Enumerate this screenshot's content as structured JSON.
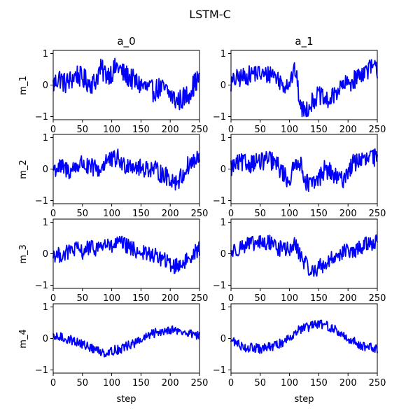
{
  "chart_data": {
    "type": "line",
    "title": "LSTM-C",
    "column_titles": [
      "a_0",
      "a_1"
    ],
    "row_labels": [
      "m_1",
      "m_2",
      "m_3",
      "m_4"
    ],
    "xlabel": "step",
    "xlim": [
      0,
      250
    ],
    "ylim": [
      -1.1,
      1.1
    ],
    "xticks": [
      0,
      50,
      100,
      150,
      200,
      250
    ],
    "yticks": [
      -1,
      0,
      1
    ],
    "line_color": "#0000ff",
    "points_per_series": 250,
    "panels": [
      {
        "row": "m_1",
        "col": "a_0",
        "anchors": [
          [
            0,
            0.0
          ],
          [
            10,
            0.25
          ],
          [
            20,
            0.05
          ],
          [
            30,
            0.15
          ],
          [
            40,
            0.35
          ],
          [
            50,
            0.2
          ],
          [
            60,
            0.1
          ],
          [
            70,
            0.05
          ],
          [
            80,
            0.5
          ],
          [
            90,
            0.35
          ],
          [
            100,
            0.4
          ],
          [
            110,
            0.6
          ],
          [
            120,
            0.35
          ],
          [
            130,
            0.25
          ],
          [
            140,
            0.1
          ],
          [
            150,
            0.0
          ],
          [
            160,
            -0.1
          ],
          [
            170,
            -0.2
          ],
          [
            180,
            -0.1
          ],
          [
            190,
            -0.15
          ],
          [
            200,
            -0.3
          ],
          [
            210,
            -0.5
          ],
          [
            220,
            -0.45
          ],
          [
            230,
            -0.3
          ],
          [
            240,
            0.0
          ],
          [
            250,
            0.25
          ]
        ],
        "noise": 0.35
      },
      {
        "row": "m_1",
        "col": "a_1",
        "anchors": [
          [
            0,
            0.05
          ],
          [
            10,
            0.2
          ],
          [
            20,
            0.25
          ],
          [
            30,
            0.3
          ],
          [
            40,
            0.4
          ],
          [
            50,
            0.35
          ],
          [
            60,
            0.3
          ],
          [
            70,
            0.4
          ],
          [
            80,
            0.2
          ],
          [
            90,
            0.0
          ],
          [
            100,
            0.1
          ],
          [
            110,
            0.5
          ],
          [
            115,
            -0.2
          ],
          [
            120,
            -0.8
          ],
          [
            130,
            -0.75
          ],
          [
            140,
            -0.5
          ],
          [
            150,
            -0.3
          ],
          [
            160,
            -0.5
          ],
          [
            170,
            -0.5
          ],
          [
            180,
            -0.2
          ],
          [
            190,
            -0.05
          ],
          [
            200,
            0.05
          ],
          [
            210,
            0.15
          ],
          [
            220,
            0.35
          ],
          [
            230,
            0.45
          ],
          [
            240,
            0.55
          ],
          [
            250,
            0.5
          ]
        ],
        "noise": 0.3
      },
      {
        "row": "m_2",
        "col": "a_0",
        "anchors": [
          [
            0,
            0.0
          ],
          [
            10,
            0.05
          ],
          [
            20,
            0.0
          ],
          [
            30,
            -0.05
          ],
          [
            40,
            0.1
          ],
          [
            50,
            0.2
          ],
          [
            60,
            0.0
          ],
          [
            70,
            0.05
          ],
          [
            80,
            -0.05
          ],
          [
            90,
            0.3
          ],
          [
            100,
            0.25
          ],
          [
            110,
            0.35
          ],
          [
            120,
            0.1
          ],
          [
            130,
            0.2
          ],
          [
            140,
            0.1
          ],
          [
            150,
            0.0
          ],
          [
            160,
            0.05
          ],
          [
            170,
            0.0
          ],
          [
            180,
            -0.1
          ],
          [
            190,
            -0.2
          ],
          [
            200,
            -0.3
          ],
          [
            210,
            -0.4
          ],
          [
            220,
            -0.25
          ],
          [
            230,
            0.1
          ],
          [
            240,
            0.25
          ],
          [
            250,
            0.3
          ]
        ],
        "noise": 0.3
      },
      {
        "row": "m_2",
        "col": "a_1",
        "anchors": [
          [
            0,
            0.05
          ],
          [
            10,
            0.15
          ],
          [
            20,
            0.2
          ],
          [
            30,
            0.15
          ],
          [
            40,
            0.25
          ],
          [
            50,
            0.2
          ],
          [
            60,
            0.3
          ],
          [
            70,
            0.25
          ],
          [
            80,
            0.1
          ],
          [
            90,
            -0.15
          ],
          [
            95,
            -0.3
          ],
          [
            100,
            -0.35
          ],
          [
            110,
            0.15
          ],
          [
            115,
            0.35
          ],
          [
            120,
            0.05
          ],
          [
            130,
            -0.45
          ],
          [
            140,
            -0.5
          ],
          [
            150,
            -0.3
          ],
          [
            160,
            0.0
          ],
          [
            170,
            -0.1
          ],
          [
            180,
            -0.3
          ],
          [
            190,
            -0.35
          ],
          [
            200,
            -0.05
          ],
          [
            210,
            0.2
          ],
          [
            220,
            0.3
          ],
          [
            230,
            0.25
          ],
          [
            240,
            0.4
          ],
          [
            250,
            0.3
          ]
        ],
        "noise": 0.3
      },
      {
        "row": "m_3",
        "col": "a_0",
        "anchors": [
          [
            0,
            0.0
          ],
          [
            10,
            -0.05
          ],
          [
            20,
            0.0
          ],
          [
            30,
            0.1
          ],
          [
            40,
            0.15
          ],
          [
            50,
            0.05
          ],
          [
            60,
            0.2
          ],
          [
            70,
            0.15
          ],
          [
            80,
            0.25
          ],
          [
            90,
            0.3
          ],
          [
            100,
            0.2
          ],
          [
            110,
            0.35
          ],
          [
            120,
            0.3
          ],
          [
            130,
            0.2
          ],
          [
            140,
            0.1
          ],
          [
            150,
            0.05
          ],
          [
            160,
            0.0
          ],
          [
            170,
            -0.05
          ],
          [
            180,
            -0.1
          ],
          [
            190,
            -0.2
          ],
          [
            200,
            -0.35
          ],
          [
            210,
            -0.4
          ],
          [
            220,
            -0.3
          ],
          [
            230,
            -0.2
          ],
          [
            240,
            0.05
          ],
          [
            250,
            0.15
          ]
        ],
        "noise": 0.25
      },
      {
        "row": "m_3",
        "col": "a_1",
        "anchors": [
          [
            0,
            0.05
          ],
          [
            10,
            0.15
          ],
          [
            20,
            0.25
          ],
          [
            30,
            0.3
          ],
          [
            40,
            0.3
          ],
          [
            50,
            0.35
          ],
          [
            60,
            0.3
          ],
          [
            70,
            0.4
          ],
          [
            80,
            0.15
          ],
          [
            90,
            0.2
          ],
          [
            100,
            0.1
          ],
          [
            110,
            0.3
          ],
          [
            120,
            -0.1
          ],
          [
            130,
            -0.4
          ],
          [
            140,
            -0.6
          ],
          [
            150,
            -0.4
          ],
          [
            160,
            -0.35
          ],
          [
            170,
            -0.2
          ],
          [
            180,
            -0.05
          ],
          [
            190,
            0.05
          ],
          [
            200,
            0.1
          ],
          [
            210,
            0.0
          ],
          [
            220,
            0.2
          ],
          [
            230,
            0.3
          ],
          [
            240,
            0.35
          ],
          [
            250,
            0.4
          ]
        ],
        "noise": 0.25
      },
      {
        "row": "m_4",
        "col": "a_0",
        "anchors": [
          [
            0,
            0.0
          ],
          [
            10,
            0.05
          ],
          [
            20,
            0.0
          ],
          [
            30,
            -0.05
          ],
          [
            40,
            -0.1
          ],
          [
            50,
            -0.2
          ],
          [
            60,
            -0.25
          ],
          [
            70,
            -0.35
          ],
          [
            80,
            -0.4
          ],
          [
            90,
            -0.45
          ],
          [
            100,
            -0.4
          ],
          [
            110,
            -0.35
          ],
          [
            120,
            -0.3
          ],
          [
            130,
            -0.2
          ],
          [
            140,
            -0.15
          ],
          [
            150,
            -0.05
          ],
          [
            160,
            0.05
          ],
          [
            170,
            0.15
          ],
          [
            180,
            0.2
          ],
          [
            190,
            0.25
          ],
          [
            200,
            0.3
          ],
          [
            210,
            0.25
          ],
          [
            220,
            0.2
          ],
          [
            230,
            0.15
          ],
          [
            240,
            0.15
          ],
          [
            250,
            0.1
          ]
        ],
        "noise": 0.15
      },
      {
        "row": "m_4",
        "col": "a_1",
        "anchors": [
          [
            0,
            -0.05
          ],
          [
            10,
            -0.15
          ],
          [
            20,
            -0.25
          ],
          [
            30,
            -0.3
          ],
          [
            40,
            -0.3
          ],
          [
            50,
            -0.35
          ],
          [
            60,
            -0.3
          ],
          [
            70,
            -0.25
          ],
          [
            80,
            -0.2
          ],
          [
            90,
            -0.1
          ],
          [
            100,
            0.05
          ],
          [
            110,
            0.2
          ],
          [
            120,
            0.3
          ],
          [
            130,
            0.35
          ],
          [
            140,
            0.4
          ],
          [
            150,
            0.45
          ],
          [
            160,
            0.45
          ],
          [
            170,
            0.35
          ],
          [
            180,
            0.25
          ],
          [
            190,
            0.1
          ],
          [
            200,
            0.0
          ],
          [
            210,
            -0.1
          ],
          [
            220,
            -0.2
          ],
          [
            230,
            -0.25
          ],
          [
            240,
            -0.3
          ],
          [
            250,
            -0.35
          ]
        ],
        "noise": 0.15
      }
    ]
  }
}
